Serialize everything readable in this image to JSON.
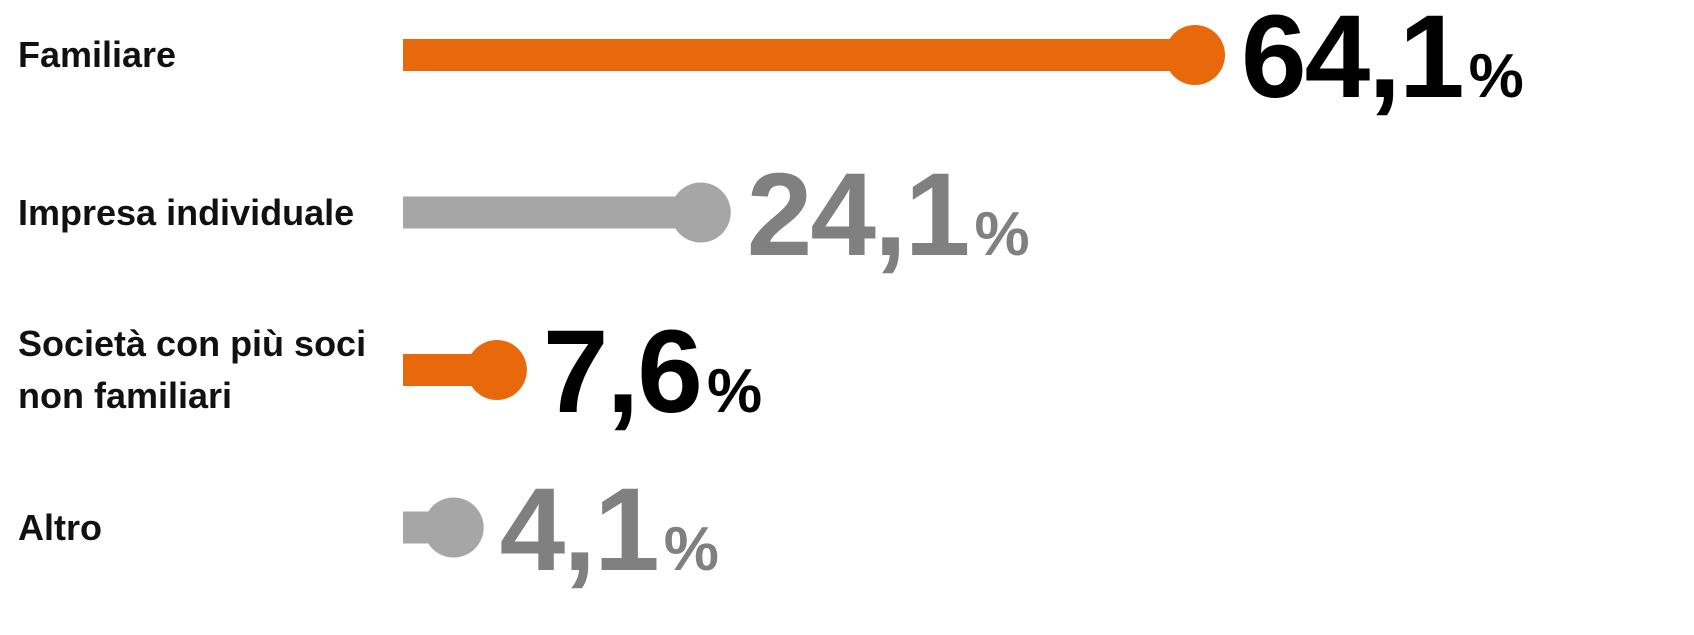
{
  "chart_data": {
    "type": "lollipop",
    "categories": [
      "Familiare",
      "Impresa individuale",
      "Società con più soci non familiari",
      "Altro"
    ],
    "values": [
      64.1,
      24.1,
      7.6,
      4.1
    ],
    "value_labels": [
      "64,1",
      "24,1",
      "7,6",
      "4,1"
    ],
    "unit": "%",
    "colors": [
      "#e8690b",
      "#a6a6a6",
      "#e8690b",
      "#a6a6a6"
    ],
    "label_colors": [
      "#000000",
      "#808080",
      "#000000",
      "#808080"
    ]
  }
}
